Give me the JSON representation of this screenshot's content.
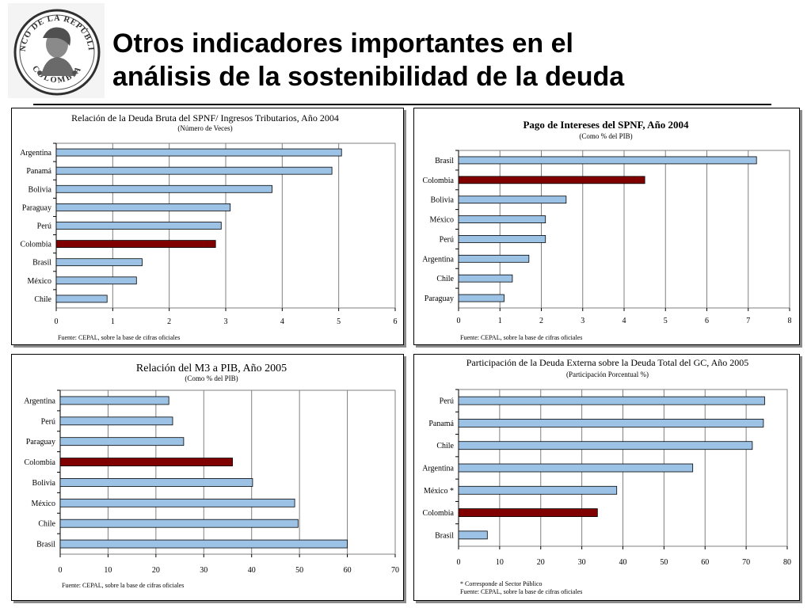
{
  "slide": {
    "title_line1": "Otros indicadores importantes en el",
    "title_line2": "análisis de la sostenibilidad de la deuda"
  },
  "logo": {
    "text_top": "BANCO DE LA REPÚBLICA",
    "text_bottom": "COLOMBIA"
  },
  "colors": {
    "bar": "#9cc3e6",
    "highlight": "#800000",
    "grid": "#808080"
  },
  "chart_data": [
    {
      "type": "bar",
      "orientation": "horizontal",
      "title": "Relación de la Deuda Bruta del SPNF/ Ingresos Tributarios, Año 2004",
      "subtitle": "(Número de Veces)",
      "categories": [
        "Argentina",
        "Panamá",
        "Bolivia",
        "Paraguay",
        "Perú",
        "Colombia",
        "Brasil",
        "México",
        "Chile"
      ],
      "values": [
        5.05,
        4.88,
        3.82,
        3.08,
        2.92,
        2.82,
        1.52,
        1.42,
        0.9
      ],
      "highlight": "Colombia",
      "xlim": [
        0,
        6
      ],
      "xticks": [
        0,
        1,
        2,
        3,
        4,
        5,
        6
      ],
      "grid": true,
      "source": "Fuente: CEPAL, sobre la base de cifras oficiales"
    },
    {
      "type": "bar",
      "orientation": "horizontal",
      "title": "Pago de Intereses del SPNF, Año 2004",
      "subtitle": "(Como % del PIB)",
      "categories": [
        "Brasil",
        "Colombia",
        "Bolivia",
        "México",
        "Perú",
        "Argentina",
        "Chile",
        "Paraguay"
      ],
      "values": [
        7.2,
        4.5,
        2.6,
        2.1,
        2.1,
        1.7,
        1.3,
        1.1
      ],
      "highlight": "Colombia",
      "xlim": [
        0,
        8
      ],
      "xticks": [
        0,
        1,
        2,
        3,
        4,
        5,
        6,
        7,
        8
      ],
      "grid": true,
      "source": "Fuente: CEPAL, sobre la base de cifras oficiales"
    },
    {
      "type": "bar",
      "orientation": "horizontal",
      "title": "Relación del M3 a PIB, Año 2005",
      "subtitle": "(Como % del PIB)",
      "categories": [
        "Argentina",
        "Perú",
        "Paraguay",
        "Colombia",
        "Bolivia",
        "México",
        "Chile",
        "Brasil"
      ],
      "values": [
        22.7,
        23.5,
        25.8,
        36,
        40.2,
        49,
        49.7,
        60
      ],
      "highlight": "Colombia",
      "xlim": [
        0,
        70
      ],
      "xticks": [
        0,
        10,
        20,
        30,
        40,
        50,
        60,
        70
      ],
      "grid": true,
      "source": "Fuente: CEPAL, sobre la base de cifras oficiales"
    },
    {
      "type": "bar",
      "orientation": "horizontal",
      "title": "Participación de la Deuda Externa sobre la Deuda Total del GC, Año 2005",
      "subtitle": "(Participación Porcentual %)",
      "categories": [
        "Perú",
        "Panamá",
        "Chile",
        "Argentina",
        "México *",
        "Colombia",
        "Brasil"
      ],
      "values": [
        74.5,
        74.2,
        71.5,
        57,
        38.5,
        33.8,
        7
      ],
      "highlight": "Colombia",
      "xlim": [
        0,
        80
      ],
      "xticks": [
        0,
        10,
        20,
        30,
        40,
        50,
        60,
        70,
        80
      ],
      "grid": true,
      "footnote": "* Corresponde al Sector Público",
      "source": "Fuente: CEPAL, sobre la base de cifras oficiales"
    }
  ]
}
